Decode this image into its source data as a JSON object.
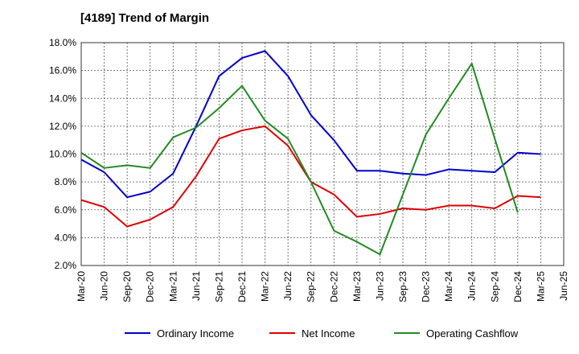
{
  "title": "[4189]  Trend of Margin",
  "chart_data": {
    "type": "line",
    "title": "[4189]  Trend of Margin",
    "x": [
      "Mar-20",
      "Jun-20",
      "Sep-20",
      "Dec-20",
      "Mar-21",
      "Jun-21",
      "Sep-21",
      "Dec-21",
      "Mar-22",
      "Jun-22",
      "Sep-22",
      "Dec-22",
      "Mar-23",
      "Jun-23",
      "Sep-23",
      "Dec-23",
      "Mar-24",
      "Jun-24",
      "Sep-24",
      "Dec-24",
      "Mar-25",
      "Jun-25"
    ],
    "ylim": [
      2.0,
      18.0
    ],
    "yticks": [
      "18.0%",
      "16.0%",
      "14.0%",
      "12.0%",
      "10.0%",
      "8.0%",
      "6.0%",
      "4.0%",
      "2.0%"
    ],
    "ytick_values": [
      18,
      16,
      14,
      12,
      10,
      8,
      6,
      4,
      2
    ],
    "grid": true,
    "legend_position": "bottom",
    "series": [
      {
        "name": "Ordinary Income",
        "color": "#0000cc",
        "values": [
          9.6,
          8.7,
          6.9,
          7.3,
          8.6,
          12.0,
          15.6,
          16.9,
          17.4,
          15.6,
          12.8,
          11.0,
          8.8,
          8.8,
          8.6,
          8.5,
          8.9,
          8.8,
          8.7,
          10.1,
          10.0,
          null
        ]
      },
      {
        "name": "Net Income",
        "color": "#dd0000",
        "values": [
          6.7,
          6.2,
          4.8,
          5.3,
          6.2,
          8.4,
          11.1,
          11.7,
          12.0,
          10.6,
          8.0,
          7.1,
          5.5,
          5.7,
          6.1,
          6.0,
          6.3,
          6.3,
          6.1,
          7.0,
          6.9,
          null
        ]
      },
      {
        "name": "Operating Cashflow",
        "color": "#228b22",
        "values": [
          10.1,
          9.0,
          9.2,
          9.0,
          11.2,
          11.9,
          13.3,
          14.9,
          12.4,
          11.1,
          8.0,
          4.5,
          3.7,
          2.8,
          7.1,
          11.4,
          14.0,
          16.5,
          11.1,
          5.8,
          null,
          null
        ]
      }
    ]
  }
}
